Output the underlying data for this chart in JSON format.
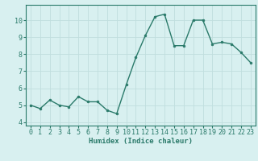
{
  "x": [
    0,
    1,
    2,
    3,
    4,
    5,
    6,
    7,
    8,
    9,
    10,
    11,
    12,
    13,
    14,
    15,
    16,
    17,
    18,
    19,
    20,
    21,
    22,
    23
  ],
  "y": [
    5.0,
    4.8,
    5.3,
    5.0,
    4.9,
    5.5,
    5.2,
    5.2,
    4.7,
    4.5,
    6.2,
    7.8,
    9.1,
    10.2,
    10.35,
    8.5,
    8.5,
    10.0,
    10.0,
    8.6,
    8.7,
    8.6,
    8.1,
    7.5
  ],
  "line_color": "#2a7a6a",
  "marker": "o",
  "marker_size": 2.0,
  "bg_color": "#d8f0f0",
  "grid_color": "#c0dede",
  "xlabel": "Humidex (Indice chaleur)",
  "ylim": [
    3.8,
    10.9
  ],
  "yticks": [
    4,
    5,
    6,
    7,
    8,
    9,
    10
  ],
  "xticks": [
    0,
    1,
    2,
    3,
    4,
    5,
    6,
    7,
    8,
    9,
    10,
    11,
    12,
    13,
    14,
    15,
    16,
    17,
    18,
    19,
    20,
    21,
    22,
    23
  ],
  "xlabel_fontsize": 6.5,
  "tick_fontsize": 6.0,
  "linewidth": 1.0
}
